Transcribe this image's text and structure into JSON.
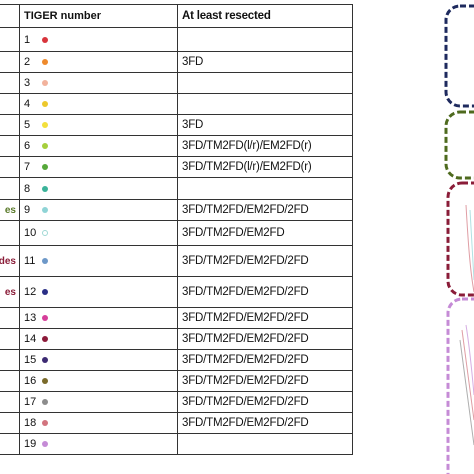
{
  "table": {
    "headers": {
      "tiger_number": "TIGER number",
      "resected": "At least resected"
    },
    "rows": [
      {
        "number": "1",
        "dot": "#d8343b",
        "resected": ""
      },
      {
        "number": "2",
        "dot": "#ee8a2c",
        "resected": "3FD"
      },
      {
        "number": "3",
        "dot": "#f2b29c",
        "resected": ""
      },
      {
        "number": "4",
        "dot": "#ecc82c",
        "resected": ""
      },
      {
        "number": "5",
        "dot": "#f3e03c",
        "resected": "3FD"
      },
      {
        "number": "6",
        "dot": "#a6cf3c",
        "resected": "3FD/TM2FD(l/r)/EM2FD(r)"
      },
      {
        "number": "7",
        "dot": "#56a83a",
        "resected": "3FD/TM2FD(l/r)/EM2FD(r)"
      },
      {
        "number": "8",
        "dot": "#3bb39a",
        "resected": ""
      },
      {
        "number": "9",
        "dot": "#8fd4d6",
        "resected": "3FD/TM2FD/EM2FD/2FD",
        "left": "es",
        "left_color": "#5a7a2a"
      },
      {
        "number": "10",
        "dot": "#bfe8e6",
        "resected": "3FD/TM2FD/EM2FD",
        "ring": true
      },
      {
        "number": "11",
        "dot": "#6d98c8",
        "resected": "3FD/TM2FD/EM2FD/2FD",
        "left": "des",
        "left_color": "#8a1c38"
      },
      {
        "number": "12",
        "dot": "#2a2f86",
        "resected": "3FD/TM2FD/EM2FD/2FD",
        "left": "es",
        "left_color": "#8a1c38"
      },
      {
        "number": "13",
        "dot": "#d63e9a",
        "resected": "3FD/TM2FD/EM2FD/2FD"
      },
      {
        "number": "14",
        "dot": "#8c1a3a",
        "resected": "3FD/TM2FD/EM2FD/2FD"
      },
      {
        "number": "15",
        "dot": "#3c2a72",
        "resected": "3FD/TM2FD/EM2FD/2FD"
      },
      {
        "number": "16",
        "dot": "#7a6a2a",
        "resected": "3FD/TM2FD/EM2FD/2FD"
      },
      {
        "number": "17",
        "dot": "#8c8c8c",
        "resected": "3FD/TM2FD/EM2FD/2FD"
      },
      {
        "number": "18",
        "dot": "#d2747e",
        "resected": "3FD/TM2FD/EM2FD/2FD"
      },
      {
        "number": "19",
        "dot": "#c58bd6",
        "resected": ""
      }
    ]
  },
  "diagram": {
    "boxes": [
      {
        "color": "#1e2a5e"
      },
      {
        "color": "#4e6a1e"
      },
      {
        "color": "#8a1c38"
      },
      {
        "color": "#c58bd6"
      }
    ]
  }
}
